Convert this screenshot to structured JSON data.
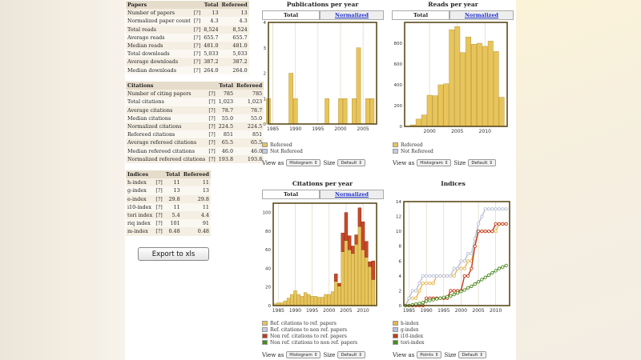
{
  "help_label": "[?]",
  "papers": {
    "headers": [
      "Papers",
      "Total",
      "Refereed"
    ],
    "rows": [
      [
        "Number of papers",
        "13",
        "13"
      ],
      [
        "Normalized paper count",
        "4.3",
        "4.3"
      ],
      [
        "Total reads",
        "8,524",
        "8,524"
      ],
      [
        "Average reads",
        "655.7",
        "655.7"
      ],
      [
        "Median reads",
        "481.0",
        "481.0"
      ],
      [
        "Total downloads",
        "5,033",
        "5,033"
      ],
      [
        "Average downloads",
        "387.2",
        "387.2"
      ],
      [
        "Median downloads",
        "264.0",
        "264.0"
      ]
    ]
  },
  "citations": {
    "headers": [
      "Citations",
      "Total",
      "Refereed"
    ],
    "rows": [
      [
        "Number of citing papers",
        "785",
        "785"
      ],
      [
        "Total citations",
        "1,023",
        "1,023"
      ],
      [
        "Average citations",
        "78.7",
        "78.7"
      ],
      [
        "Median citations",
        "55.0",
        "55.0"
      ],
      [
        "Normalized citations",
        "224.5",
        "224.5"
      ],
      [
        "Refereed citations",
        "851",
        "851"
      ],
      [
        "Average refereed citations",
        "65.5",
        "65.5"
      ],
      [
        "Median refereed citations",
        "46.0",
        "46.0"
      ],
      [
        "Normalized refereed citations",
        "193.8",
        "193.8"
      ]
    ]
  },
  "indices": {
    "headers": [
      "Indices",
      "Total",
      "Refereed"
    ],
    "rows": [
      [
        "h-index",
        "11",
        "11"
      ],
      [
        "g-index",
        "13",
        "13"
      ],
      [
        "e-index",
        "29.8",
        "29.8"
      ],
      [
        "i10-index",
        "11",
        "11"
      ],
      [
        "tori index",
        "5.4",
        "4.4"
      ],
      [
        "riq index",
        "101",
        "91"
      ],
      [
        "m-index",
        "0.48",
        "0.48"
      ]
    ]
  },
  "export_label": "Export to xls",
  "ui": {
    "view_as": "View as",
    "size": "Size",
    "tab_total": "Total",
    "tab_normalized": "Normalized"
  },
  "colors": {
    "gold": "#e8c45a",
    "gold_edge": "#b89a3a",
    "red": "#c84a28",
    "red_edge": "#8a2a10",
    "frame": "#5b4a1a"
  },
  "chart_data": [
    {
      "id": "pubs",
      "type": "bar",
      "title": "Publications per year",
      "view_as": "Histogram",
      "size": "Default",
      "x": [
        1984,
        1985,
        1986,
        1987,
        1988,
        1989,
        1990,
        1991,
        1992,
        1993,
        1994,
        1995,
        1996,
        1997,
        1998,
        1999,
        2000,
        2001,
        2002,
        2003,
        2004,
        2005,
        2006,
        2007
      ],
      "series": [
        {
          "name": "Refereed",
          "values": [
            1,
            0,
            0,
            0,
            0,
            2,
            1,
            0,
            0,
            0,
            0,
            0,
            0,
            1,
            0,
            0,
            1,
            1,
            0,
            1,
            3,
            0,
            1,
            1
          ]
        },
        {
          "name": "Not Refereed",
          "values": [
            0,
            0,
            0,
            0,
            0,
            0,
            0,
            0,
            0,
            0,
            0,
            0,
            0,
            0,
            0,
            0,
            0,
            0,
            0,
            0,
            0,
            0,
            0,
            0
          ]
        }
      ],
      "xticks": [
        1985,
        1990,
        1995,
        2000,
        2005
      ],
      "yticks": [
        0,
        1,
        2,
        3,
        4
      ],
      "ylim": [
        0,
        4
      ],
      "xlim": [
        1984,
        2008
      ]
    },
    {
      "id": "reads",
      "type": "bar",
      "title": "Reads per year",
      "view_as": "Histogram",
      "size": "Default",
      "x": [
        1996,
        1997,
        1998,
        1999,
        2000,
        2001,
        2002,
        2003,
        2004,
        2005,
        2006,
        2007,
        2008,
        2009,
        2010,
        2011,
        2012,
        2013
      ],
      "series": [
        {
          "name": "Refereed",
          "values": [
            0,
            15,
            70,
            110,
            300,
            295,
            400,
            410,
            930,
            960,
            710,
            860,
            790,
            800,
            770,
            820,
            720,
            280
          ]
        },
        {
          "name": "Not Refereed",
          "values": [
            0,
            0,
            0,
            0,
            0,
            0,
            0,
            0,
            0,
            0,
            0,
            0,
            0,
            0,
            0,
            0,
            0,
            0
          ]
        }
      ],
      "xticks": [
        2000,
        2005,
        2010
      ],
      "yticks": [
        0,
        200,
        400,
        600,
        800
      ],
      "ylim": [
        0,
        1000
      ],
      "xlim": [
        1995.5,
        2014
      ]
    },
    {
      "id": "cites",
      "type": "bar",
      "title": "Citations per year",
      "view_as": "Histogram",
      "size": "Default",
      "x": [
        1984,
        1985,
        1986,
        1987,
        1988,
        1989,
        1990,
        1991,
        1992,
        1993,
        1994,
        1995,
        1996,
        1997,
        1998,
        1999,
        2000,
        2001,
        2002,
        2003,
        2004,
        2005,
        2006,
        2007,
        2008,
        2009,
        2010,
        2011,
        2012,
        2013
      ],
      "series": [
        {
          "name": "Ref. citations to ref. papers",
          "values": [
            2,
            3,
            3,
            5,
            8,
            12,
            16,
            12,
            10,
            14,
            12,
            10,
            10,
            9,
            9,
            12,
            12,
            15,
            26,
            21,
            58,
            70,
            60,
            56,
            66,
            85,
            60,
            52,
            42,
            28
          ]
        },
        {
          "name": "Ref. citations to non ref. papers",
          "values": [
            0,
            0,
            0,
            0,
            0,
            0,
            0,
            0,
            0,
            0,
            0,
            0,
            0,
            0,
            0,
            0,
            0,
            0,
            0,
            0,
            0,
            0,
            0,
            0,
            0,
            0,
            0,
            0,
            0,
            0
          ]
        },
        {
          "name": "Non ref. citations to ref. papers",
          "values": [
            0,
            0,
            0,
            0,
            0,
            0,
            0,
            0,
            0,
            0,
            0,
            0,
            0,
            0,
            0,
            0,
            0,
            0,
            8,
            3,
            20,
            30,
            15,
            8,
            10,
            20,
            30,
            17,
            5,
            20
          ]
        },
        {
          "name": "Non ref. citations to non ref. papers",
          "values": [
            0,
            0,
            0,
            0,
            0,
            0,
            0,
            0,
            0,
            0,
            0,
            0,
            0,
            0,
            0,
            0,
            0,
            0,
            0,
            0,
            0,
            0,
            0,
            0,
            0,
            0,
            0,
            0,
            0,
            0
          ]
        }
      ],
      "xticks": [
        1985,
        1990,
        1995,
        2000,
        2005,
        2010
      ],
      "yticks": [
        0,
        20,
        40,
        60,
        80,
        100
      ],
      "ylim": [
        0,
        110
      ],
      "xlim": [
        1983.5,
        2014
      ]
    },
    {
      "id": "indices",
      "type": "line",
      "title": "Indices",
      "view_as": "Points",
      "size": "Default",
      "x": [
        1984,
        1985,
        1986,
        1987,
        1988,
        1989,
        1990,
        1991,
        1992,
        1993,
        1994,
        1995,
        1996,
        1997,
        1998,
        1999,
        2000,
        2001,
        2002,
        2003,
        2004,
        2005,
        2006,
        2007,
        2008,
        2009,
        2010,
        2011,
        2012,
        2013
      ],
      "series": [
        {
          "name": "h-index",
          "values": [
            0,
            1,
            1,
            1,
            2,
            3,
            3,
            3,
            3,
            4,
            4,
            4,
            4,
            4,
            4,
            5,
            5,
            5,
            6,
            6,
            8,
            10,
            10,
            10,
            10,
            10,
            10,
            11,
            11,
            11
          ]
        },
        {
          "name": "g-index",
          "values": [
            0,
            1,
            2,
            2,
            3,
            4,
            4,
            4,
            4,
            4,
            4,
            4,
            4,
            4,
            5,
            5,
            6,
            6,
            7,
            7,
            9,
            11,
            12,
            13,
            13,
            13,
            13,
            13,
            13,
            13
          ]
        },
        {
          "name": "i10-index",
          "values": [
            0,
            0,
            0,
            0,
            0,
            0,
            1,
            1,
            1,
            1,
            1,
            1,
            1,
            2,
            2,
            2,
            2,
            4,
            4,
            5,
            8,
            10,
            10,
            10,
            10,
            10,
            11,
            11,
            11,
            11
          ]
        },
        {
          "name": "tori-index",
          "values": [
            0,
            0,
            0.1,
            0.2,
            0.3,
            0.4,
            0.6,
            0.7,
            0.8,
            0.9,
            1.0,
            1.1,
            1.2,
            1.3,
            1.5,
            1.7,
            1.9,
            2.1,
            2.4,
            2.6,
            2.9,
            3.2,
            3.5,
            3.8,
            4.1,
            4.4,
            4.7,
            5.0,
            5.2,
            5.4
          ]
        }
      ],
      "series_colors": [
        "#e8b54a",
        "#b9c0d6",
        "#c0391b",
        "#4a8a1c"
      ],
      "xticks": [
        1985,
        1990,
        1995,
        2000,
        2005,
        2010
      ],
      "yticks": [
        0,
        2,
        4,
        6,
        8,
        10,
        12,
        14
      ],
      "ylim": [
        0,
        14
      ],
      "xlim": [
        1983.5,
        2014
      ]
    }
  ]
}
